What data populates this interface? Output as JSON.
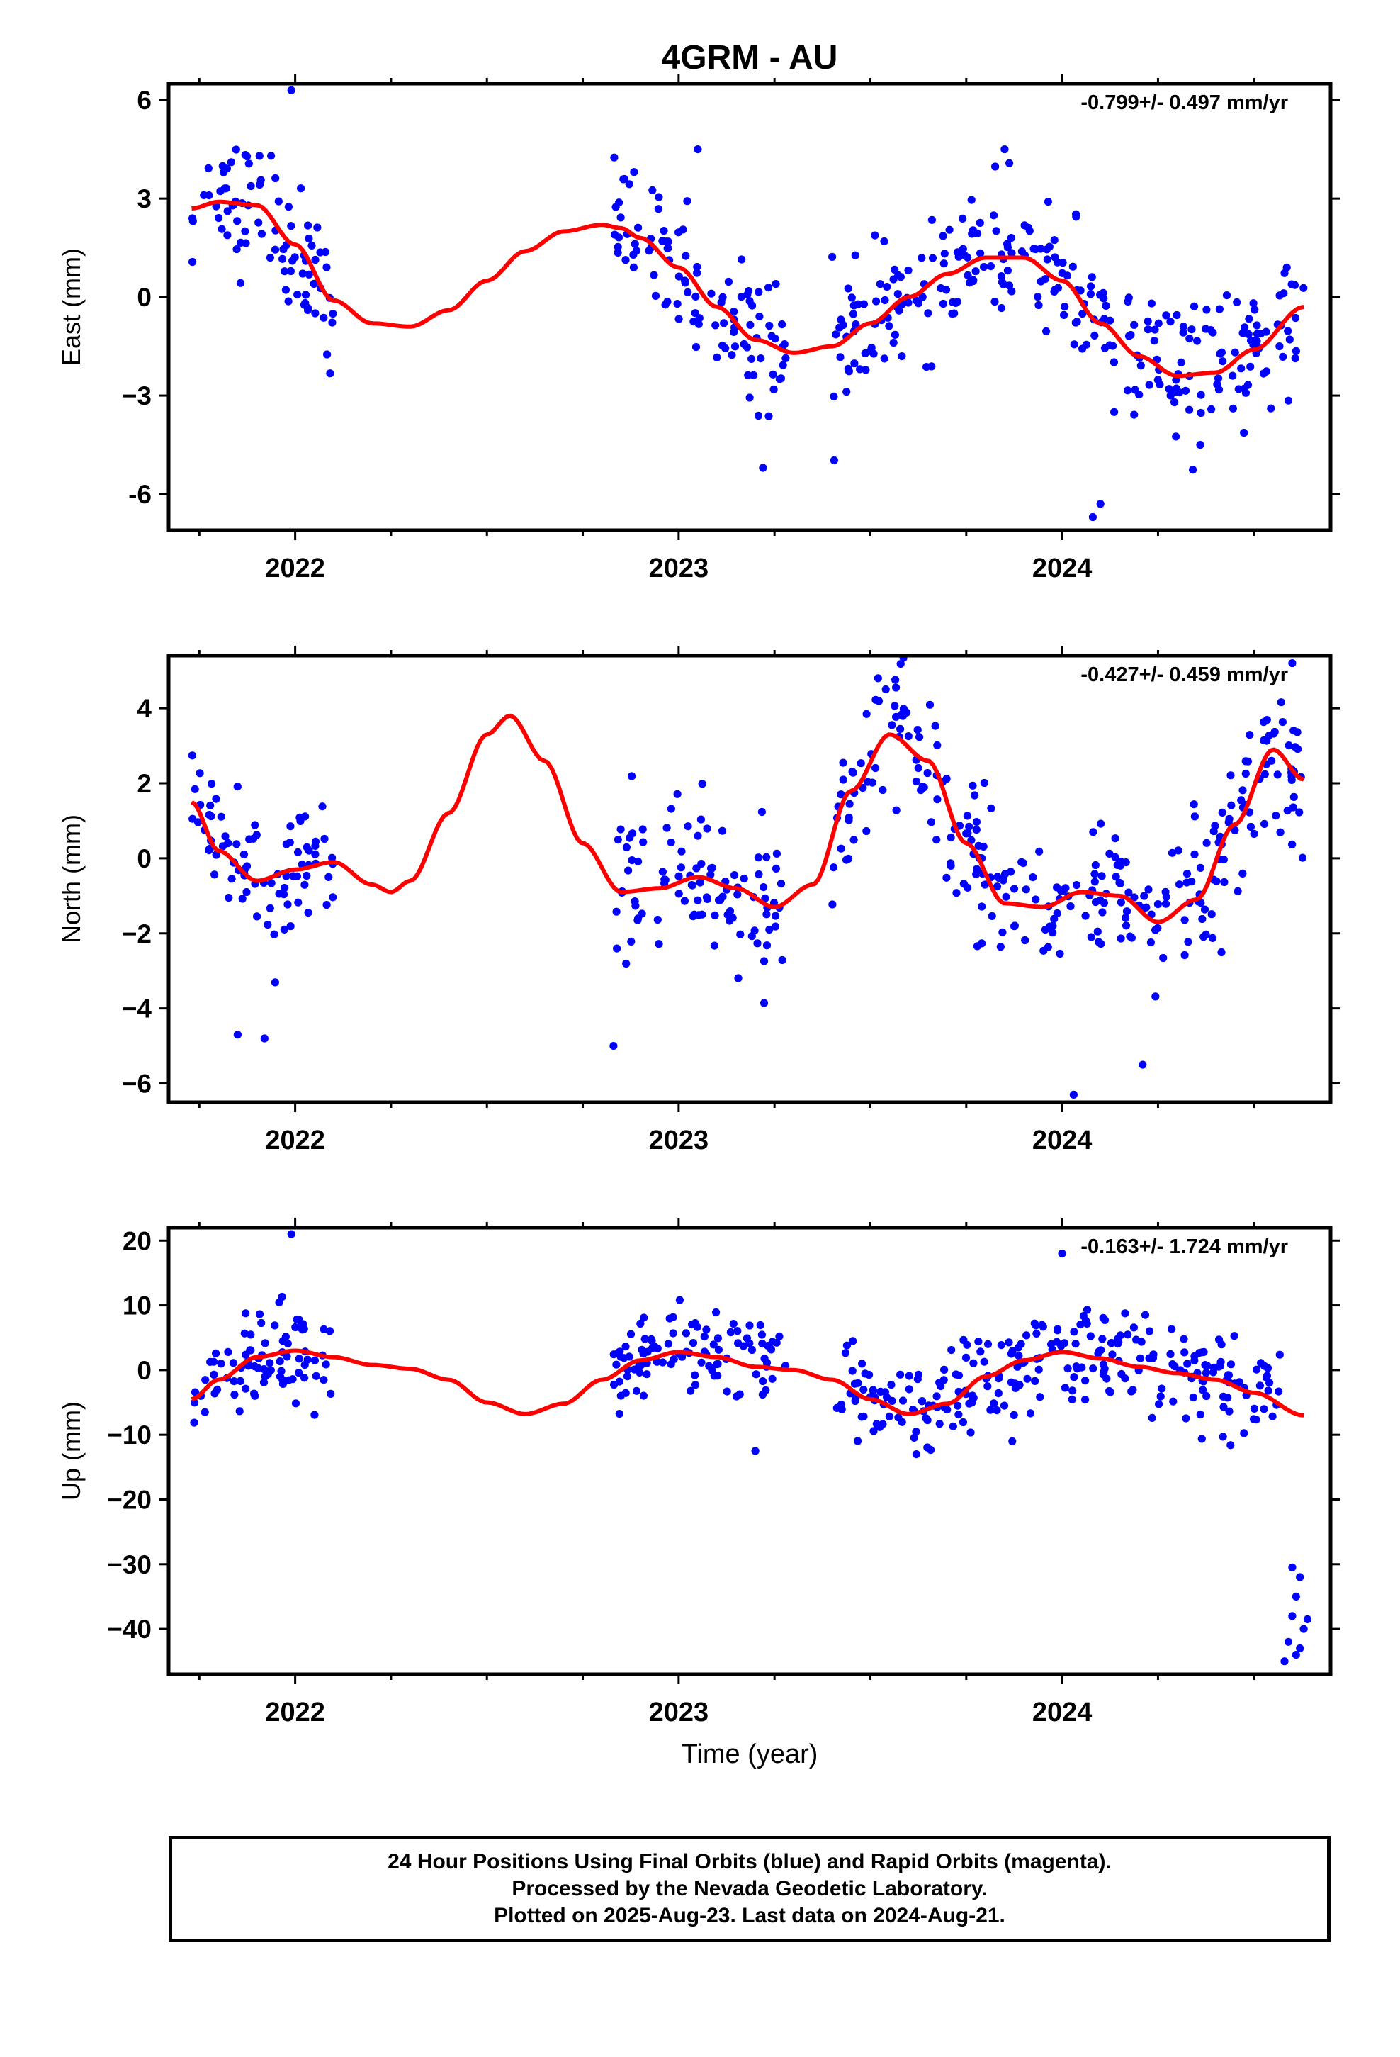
{
  "title": "4GRM - AU",
  "xlabel": "Time (year)",
  "footer": {
    "line1": "24 Hour Positions Using Final Orbits (blue) and Rapid Orbits (magenta).",
    "line2": "Processed by the Nevada Geodetic Laboratory.",
    "line3": "Plotted on 2025-Aug-23. Last data on 2024-Aug-21."
  },
  "colors": {
    "points": "#0000ff",
    "fit": "#ff0000",
    "axes": "#000000"
  },
  "chart_data": [
    {
      "type": "scatter",
      "name": "east",
      "ylabel": "East (mm)",
      "rate": "-0.799+/- 0.497 mm/yr",
      "xlim": [
        2021.67,
        2024.7
      ],
      "ylim": [
        -7.1,
        6.5
      ],
      "xticks": [
        2022,
        2023,
        2024
      ],
      "yticks": [
        6,
        3,
        0,
        -3,
        -6
      ],
      "ytick_labels": [
        "6",
        "3",
        "0",
        "−3",
        "-6"
      ],
      "segments": [
        [
          2021.73,
          2022.1
        ],
        [
          2022.83,
          2023.28
        ],
        [
          2023.4,
          2023.9
        ],
        [
          2023.9,
          2024.63
        ]
      ],
      "fit": {
        "x": [
          2021.73,
          2021.8,
          2021.9,
          2022.0,
          2022.1,
          2022.2,
          2022.3,
          2022.4,
          2022.5,
          2022.6,
          2022.7,
          2022.8,
          2022.85,
          2022.9,
          2023.0,
          2023.1,
          2023.2,
          2023.3,
          2023.4,
          2023.5,
          2023.6,
          2023.7,
          2023.8,
          2023.9,
          2024.0,
          2024.1,
          2024.2,
          2024.3,
          2024.4,
          2024.5,
          2024.63
        ],
        "y": [
          2.7,
          2.9,
          2.8,
          1.6,
          -0.1,
          -0.8,
          -0.9,
          -0.4,
          0.5,
          1.4,
          2.0,
          2.2,
          2.1,
          1.8,
          0.9,
          -0.3,
          -1.3,
          -1.7,
          -1.5,
          -0.8,
          0.0,
          0.7,
          1.2,
          1.2,
          0.5,
          -0.8,
          -1.8,
          -2.4,
          -2.3,
          -1.6,
          -0.3
        ]
      },
      "outliers": [
        [
          2021.99,
          6.3
        ],
        [
          2023.22,
          -5.2
        ],
        [
          2024.08,
          -6.7
        ],
        [
          2024.1,
          -6.3
        ],
        [
          2024.36,
          -4.5
        ],
        [
          2023.05,
          4.5
        ],
        [
          2023.85,
          4.5
        ]
      ]
    },
    {
      "type": "scatter",
      "name": "north",
      "ylabel": "North (mm)",
      "rate": "-0.427+/- 0.459 mm/yr",
      "xlim": [
        2021.67,
        2024.7
      ],
      "ylim": [
        -6.5,
        5.4
      ],
      "xticks": [
        2022,
        2023,
        2024
      ],
      "yticks": [
        4,
        2,
        0,
        -2,
        -4,
        -6
      ],
      "ytick_labels": [
        "4",
        "2",
        "0",
        "−2",
        "−4",
        "−6"
      ],
      "segments": [
        [
          2021.73,
          2022.1
        ],
        [
          2022.83,
          2023.28
        ],
        [
          2023.4,
          2023.9
        ],
        [
          2023.9,
          2024.63
        ]
      ],
      "fit": {
        "x": [
          2021.73,
          2021.8,
          2021.9,
          2022.0,
          2022.1,
          2022.2,
          2022.25,
          2022.3,
          2022.4,
          2022.5,
          2022.56,
          2022.65,
          2022.75,
          2022.85,
          2022.95,
          2023.05,
          2023.15,
          2023.25,
          2023.35,
          2023.45,
          2023.55,
          2023.65,
          2023.75,
          2023.85,
          2023.95,
          2024.05,
          2024.15,
          2024.25,
          2024.35,
          2024.45,
          2024.55,
          2024.63
        ],
        "y": [
          1.5,
          0.2,
          -0.6,
          -0.3,
          -0.1,
          -0.7,
          -0.9,
          -0.6,
          1.2,
          3.3,
          3.8,
          2.6,
          0.4,
          -0.9,
          -0.8,
          -0.5,
          -0.8,
          -1.3,
          -0.7,
          1.8,
          3.3,
          2.6,
          0.4,
          -1.2,
          -1.3,
          -0.9,
          -1.0,
          -1.7,
          -1.1,
          0.9,
          2.9,
          2.1
        ]
      },
      "outliers": [
        [
          2021.92,
          -4.8
        ],
        [
          2021.85,
          -4.7
        ],
        [
          2022.83,
          -5.0
        ],
        [
          2024.03,
          -6.3
        ],
        [
          2024.21,
          -5.5
        ],
        [
          2023.52,
          4.8
        ],
        [
          2024.6,
          5.2
        ]
      ]
    },
    {
      "type": "scatter",
      "name": "up",
      "ylabel": "Up (mm)",
      "rate": "-0.163+/- 1.724 mm/yr",
      "xlim": [
        2021.67,
        2024.7
      ],
      "ylim": [
        -47,
        22
      ],
      "xticks": [
        2022,
        2023,
        2024
      ],
      "yticks": [
        20,
        10,
        0,
        -10,
        -20,
        -30,
        -40
      ],
      "ytick_labels": [
        "20",
        "10",
        "0",
        "−10",
        "−20",
        "−30",
        "−40"
      ],
      "segments": [
        [
          2021.73,
          2022.1
        ],
        [
          2022.83,
          2023.28
        ],
        [
          2023.4,
          2023.9
        ],
        [
          2023.9,
          2024.57
        ]
      ],
      "fit": {
        "x": [
          2021.73,
          2021.8,
          2021.9,
          2022.0,
          2022.1,
          2022.2,
          2022.3,
          2022.4,
          2022.5,
          2022.6,
          2022.7,
          2022.8,
          2022.9,
          2023.0,
          2023.1,
          2023.2,
          2023.3,
          2023.4,
          2023.5,
          2023.6,
          2023.7,
          2023.8,
          2023.9,
          2024.0,
          2024.1,
          2024.2,
          2024.3,
          2024.4,
          2024.5,
          2024.63
        ],
        "y": [
          -4.5,
          -1.5,
          2.0,
          3.0,
          2.0,
          0.8,
          0.2,
          -1.5,
          -5.0,
          -6.8,
          -5.2,
          -1.5,
          1.5,
          2.8,
          2.0,
          0.5,
          0.0,
          -1.5,
          -4.5,
          -6.8,
          -5.2,
          -1.0,
          1.5,
          2.8,
          1.8,
          0.5,
          -0.5,
          -1.5,
          -3.5,
          -7.0
        ]
      },
      "outliers": [
        [
          2021.99,
          21.0
        ],
        [
          2023.2,
          -12.5
        ],
        [
          2023.62,
          -13.0
        ],
        [
          2023.87,
          -11.0
        ],
        [
          2024.0,
          18.0
        ],
        [
          2024.58,
          -45
        ],
        [
          2024.59,
          -42
        ],
        [
          2024.6,
          -38
        ],
        [
          2024.61,
          -35
        ],
        [
          2024.62,
          -32
        ],
        [
          2024.6,
          -30.5
        ],
        [
          2024.63,
          -40
        ],
        [
          2024.61,
          -44
        ],
        [
          2024.64,
          -38.5
        ],
        [
          2024.62,
          -43
        ]
      ]
    }
  ]
}
